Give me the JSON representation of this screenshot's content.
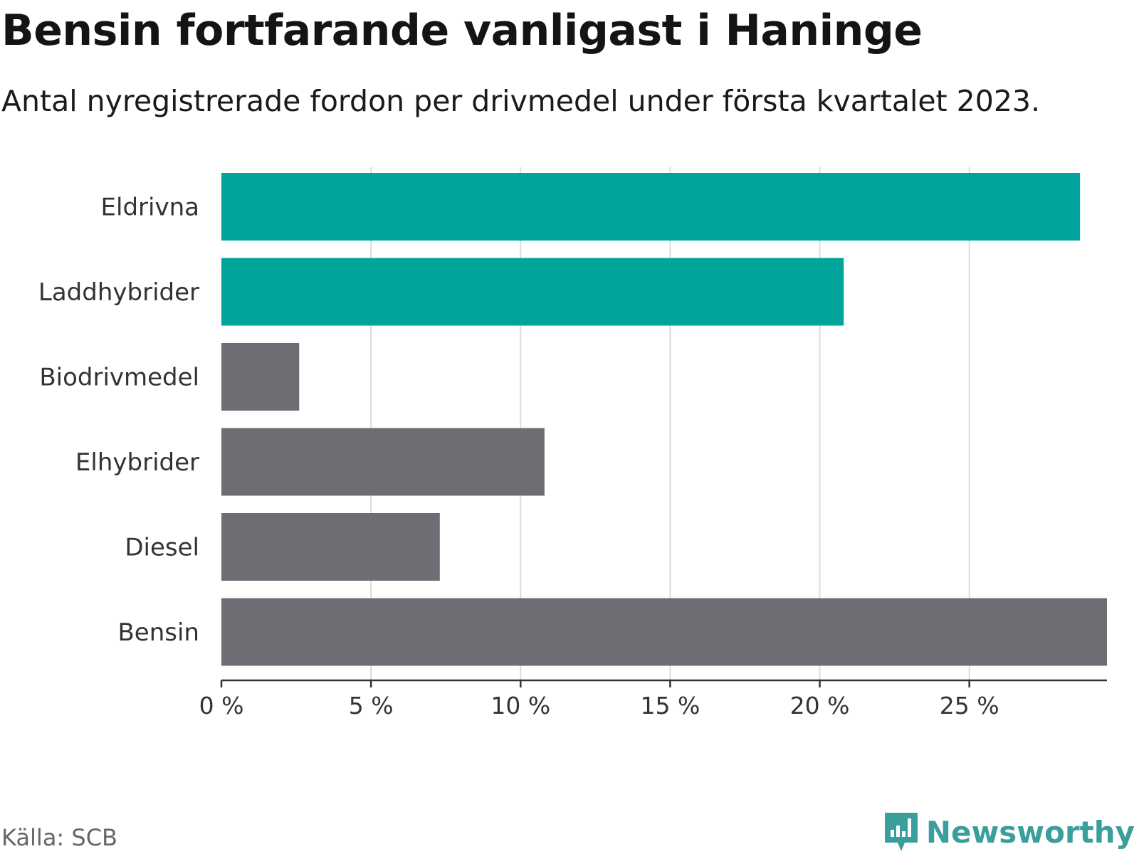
{
  "header": {
    "title": "Bensin fortfarande vanligast i Haninge",
    "subtitle": "Antal nyregistrerade fordon per drivmedel under första kvartalet 2023."
  },
  "chart_data": {
    "type": "bar",
    "orientation": "horizontal",
    "categories": [
      "Eldrivna",
      "Laddhybrider",
      "Biodrivmedel",
      "Elhybrider",
      "Diesel",
      "Bensin"
    ],
    "values": [
      28.7,
      20.8,
      2.6,
      10.8,
      7.3,
      29.6
    ],
    "colors": [
      "#00a49a",
      "#00a49a",
      "#6e6d73",
      "#6e6d73",
      "#6e6d73",
      "#6e6d73"
    ],
    "xlim": [
      0,
      29.6
    ],
    "ticks": [
      0,
      5,
      10,
      15,
      20,
      25
    ],
    "tick_labels": [
      "0 %",
      "5 %",
      "10 %",
      "15 %",
      "20 %",
      "25 %"
    ],
    "grid": true,
    "xlabel": "",
    "ylabel": "",
    "unit": "%"
  },
  "footer": {
    "source": "Källa: SCB",
    "brand": "Newsworthy",
    "brand_color": "#3a9e9a",
    "brand_icon": "newsworthy-logo-icon"
  }
}
